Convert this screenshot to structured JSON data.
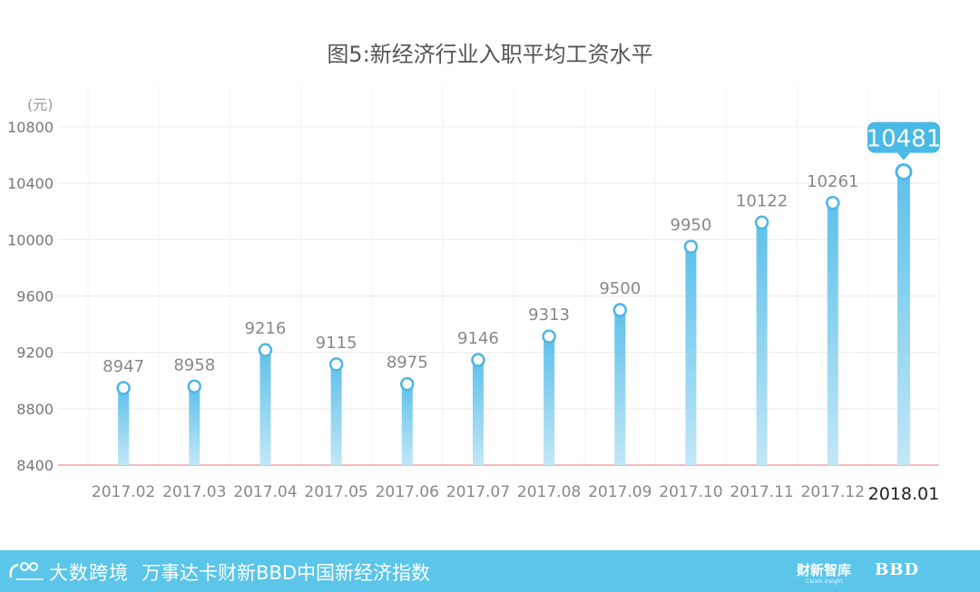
{
  "chart_data": {
    "type": "bar",
    "title": "图5:新经济行业入职平均工资水平",
    "y_unit": "(元)",
    "categories": [
      "2017.02",
      "2017.03",
      "2017.04",
      "2017.05",
      "2017.06",
      "2017.07",
      "2017.08",
      "2017.09",
      "2017.10",
      "2017.11",
      "2017.12",
      "2018.01"
    ],
    "values": [
      8947,
      8958,
      9216,
      9115,
      8975,
      9146,
      9313,
      9500,
      9950,
      10122,
      10261,
      10481
    ],
    "value_labels": [
      "8947",
      "8958",
      "9216",
      "9115",
      "8975",
      "9146",
      "9313",
      "9500",
      "9950",
      "10122",
      "10261",
      "10481"
    ],
    "highlight_index": 11,
    "ylim": [
      8400,
      10800
    ],
    "yticks": [
      8400,
      8800,
      9200,
      9600,
      10000,
      10400,
      10800
    ],
    "grid": true,
    "colors": {
      "bar_top": "#5ec1ea",
      "bar_bottom": "#bfe5f6",
      "highlight_badge": "#49b9e6",
      "baseline": "#f2a4a4",
      "grid": "#ececec"
    }
  },
  "footer": {
    "brand": "大数跨境",
    "index_name": "万事达卡财新BBD中国新经济指数",
    "partner1": "财新智库",
    "partner1_sub": "Caixin Insight",
    "partner2": "BBD",
    "background": "#5bc5ea"
  }
}
